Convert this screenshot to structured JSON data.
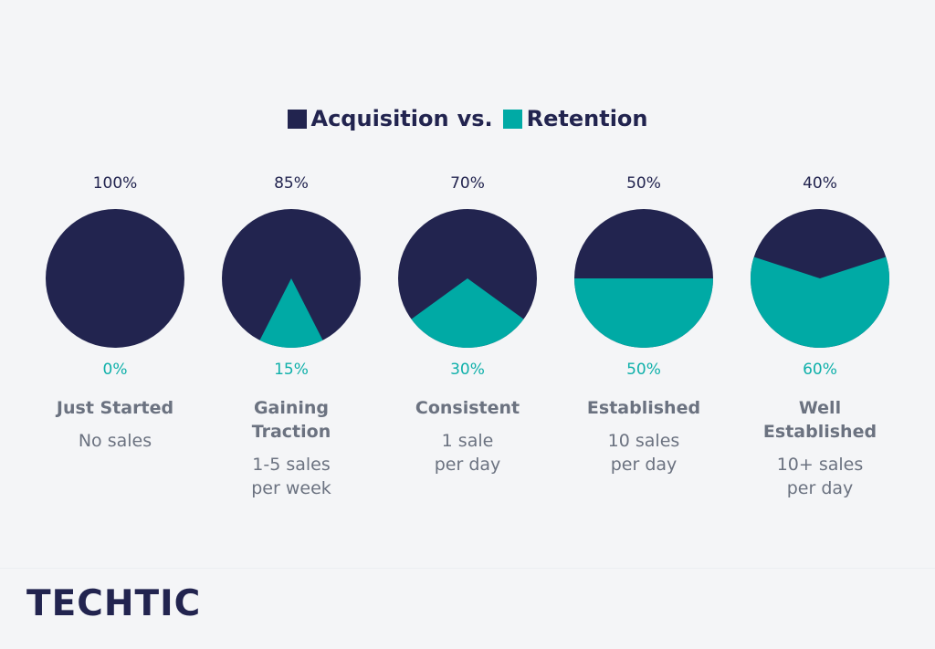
{
  "legend": {
    "acquisition_label": "Acquisition",
    "vs_label": "vs.",
    "retention_label": "Retention"
  },
  "colors": {
    "acquisition": "#22244f",
    "retention": "#00aaa5"
  },
  "chart_data": {
    "type": "pie",
    "series": [
      {
        "name": "Acquisition",
        "values": [
          100,
          85,
          70,
          50,
          40
        ]
      },
      {
        "name": "Retention",
        "values": [
          0,
          15,
          30,
          50,
          60
        ]
      }
    ],
    "categories": [
      "Just Started",
      "Gaining Traction",
      "Consistent",
      "Established",
      "Well Established"
    ],
    "pies": [
      {
        "acquisition": 100,
        "retention": 0,
        "acq_label": "100%",
        "ret_label": "0%",
        "stage_lines": [
          "Just Started"
        ],
        "desc_lines": [
          "No sales"
        ]
      },
      {
        "acquisition": 85,
        "retention": 15,
        "acq_label": "85%",
        "ret_label": "15%",
        "stage_lines": [
          "Gaining",
          "Traction"
        ],
        "desc_lines": [
          "1-5 sales",
          "per week"
        ]
      },
      {
        "acquisition": 70,
        "retention": 30,
        "acq_label": "70%",
        "ret_label": "30%",
        "stage_lines": [
          "Consistent"
        ],
        "desc_lines": [
          "1 sale",
          "per day"
        ]
      },
      {
        "acquisition": 50,
        "retention": 50,
        "acq_label": "50%",
        "ret_label": "50%",
        "stage_lines": [
          "Established"
        ],
        "desc_lines": [
          "10 sales",
          "per day"
        ]
      },
      {
        "acquisition": 40,
        "retention": 60,
        "acq_label": "40%",
        "ret_label": "60%",
        "stage_lines": [
          "Well",
          "Established"
        ],
        "desc_lines": [
          "10+ sales",
          "per day"
        ]
      }
    ]
  },
  "brand": {
    "logo_text": "TECHTIC"
  }
}
